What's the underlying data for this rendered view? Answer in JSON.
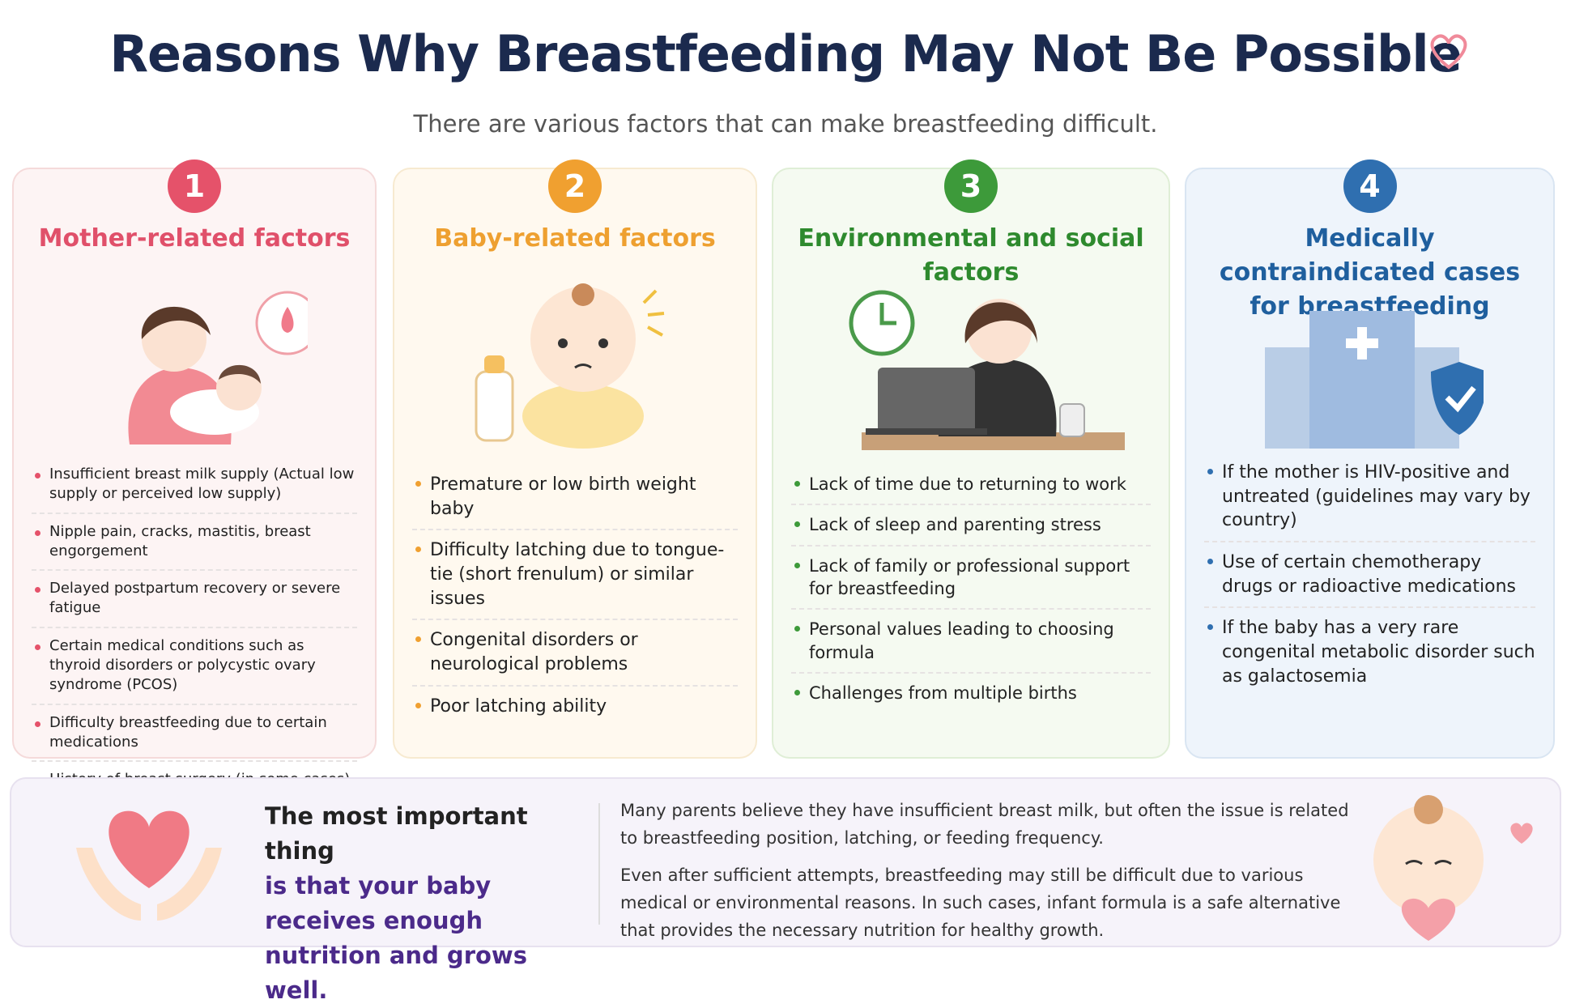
{
  "header": {
    "title": "Reasons Why Breastfeeding May Not Be Possible",
    "subtitle": "There are various factors that can make breastfeeding difficult."
  },
  "columns": [
    {
      "number": "1",
      "heading": "Mother-related factors",
      "items": [
        "Insufficient breast milk supply (Actual low supply or perceived low supply)",
        "Nipple pain, cracks, mastitis, breast engorgement",
        "Delayed postpartum recovery or severe fatigue",
        "Certain medical conditions such as thyroid disorders or polycystic ovary syndrome (PCOS)",
        "Difficulty breastfeeding due to certain medications",
        "History of breast surgery (in some cases)"
      ]
    },
    {
      "number": "2",
      "heading": "Baby-related factors",
      "items": [
        "Premature or low birth weight baby",
        "Difficulty latching due to tongue-tie (short frenulum) or similar issues",
        "Congenital disorders or neurological problems",
        "Poor latching ability"
      ]
    },
    {
      "number": "3",
      "heading": "Environmental and social factors",
      "items": [
        "Lack of time due to returning to work",
        "Lack of sleep and parenting stress",
        "Lack of family or professional support for breastfeeding",
        "Personal values leading to choosing formula",
        "Challenges from multiple births"
      ]
    },
    {
      "number": "4",
      "heading": "Medically contraindicated cases for breastfeeding (rare)",
      "items": [
        "If the mother is HIV-positive and untreated (guidelines may vary by country)",
        "Use of certain chemotherapy drugs or radioactive medications",
        "If the baby has a very rare congenital metabolic disorder such as galactosemia"
      ]
    }
  ],
  "footer": {
    "highlight_lead": "The most important thing",
    "highlight_rest": "is that your baby receives enough nutrition and grows well.",
    "paragraphs": [
      "Many parents believe they have insufficient breast milk, but often the issue is related to breastfeeding position, latching, or feeding frequency.",
      "Even after sufficient attempts, breastfeeding may still be difficult due to various medical or environmental reasons. In such cases, infant formula is a safe alternative that provides the necessary nutrition for healthy growth."
    ]
  }
}
